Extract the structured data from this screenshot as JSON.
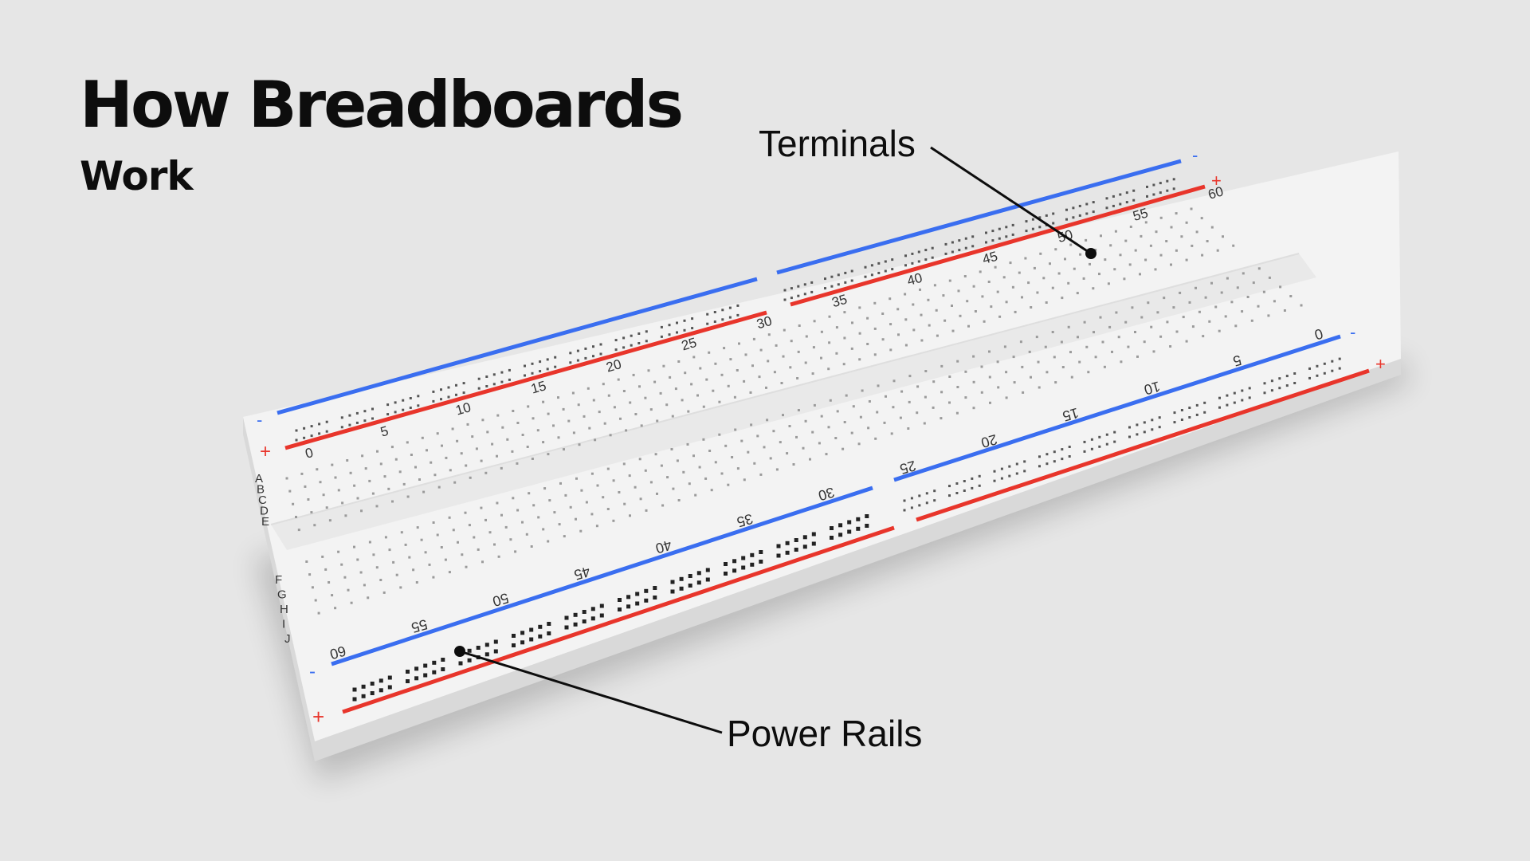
{
  "title": "How Breadboards",
  "subtitle": "Work",
  "callouts": {
    "terminals": "Terminals",
    "power_rails": "Power Rails"
  },
  "board": {
    "column_numbers": [
      "0",
      "5",
      "10",
      "15",
      "20",
      "25",
      "30",
      "35",
      "40",
      "45",
      "50",
      "55",
      "60"
    ],
    "rows_top": [
      "A",
      "B",
      "C",
      "D",
      "E"
    ],
    "rows_bottom": [
      "F",
      "G",
      "H",
      "I",
      "J"
    ],
    "rail_plus": "+",
    "rail_minus": "-"
  },
  "colors": {
    "background": "#e6e6e6",
    "board": "#f3f3f3",
    "rail_blue": "#3a6ef0",
    "rail_red": "#e8352b",
    "text": "#0d0d0d"
  }
}
